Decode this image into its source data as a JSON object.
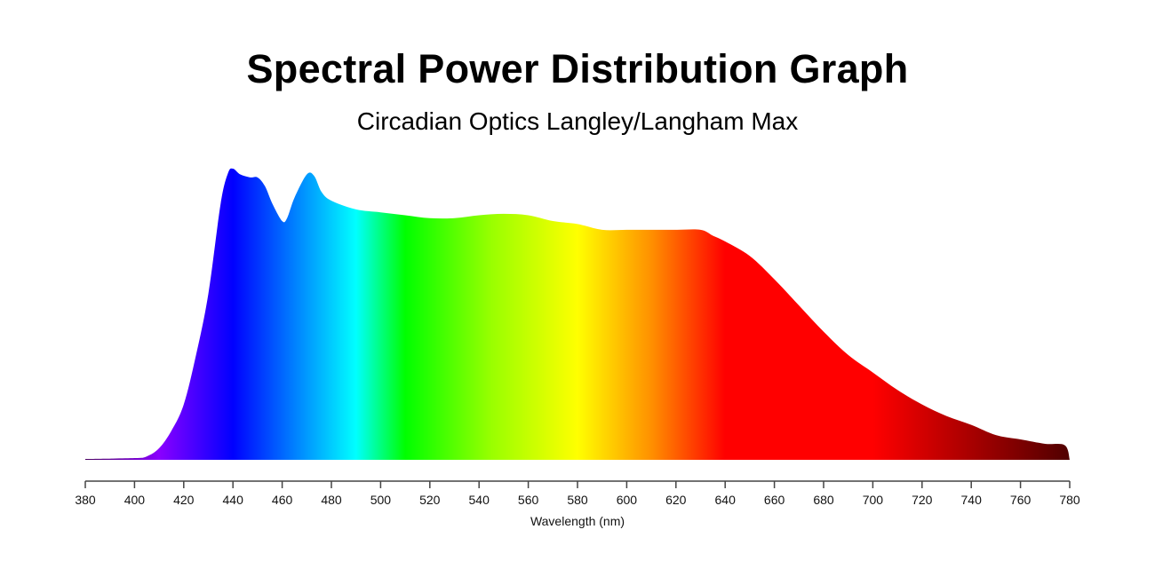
{
  "chart_data": {
    "type": "area",
    "title": "Spectral Power Distribution Graph",
    "subtitle": "Circadian Optics Langley/Langham Max",
    "xlabel": "Wavelength (nm)",
    "ylabel": "",
    "xlim": [
      380,
      780
    ],
    "ylim": [
      0,
      1
    ],
    "grid": false,
    "x_ticks": [
      380,
      400,
      420,
      440,
      460,
      480,
      500,
      520,
      540,
      560,
      580,
      600,
      620,
      640,
      660,
      680,
      700,
      720,
      740,
      760,
      780
    ],
    "x": [
      380,
      400,
      405,
      410,
      415,
      420,
      425,
      430,
      435,
      438,
      440,
      443,
      447,
      450,
      453,
      456,
      460,
      462,
      465,
      470,
      473,
      476,
      480,
      490,
      500,
      510,
      520,
      530,
      540,
      550,
      560,
      570,
      580,
      590,
      600,
      610,
      620,
      630,
      635,
      640,
      650,
      660,
      670,
      680,
      690,
      700,
      710,
      720,
      730,
      740,
      750,
      760,
      770,
      778,
      780
    ],
    "y": [
      0.003,
      0.006,
      0.012,
      0.04,
      0.1,
      0.19,
      0.36,
      0.57,
      0.88,
      0.985,
      1.0,
      0.98,
      0.97,
      0.97,
      0.94,
      0.88,
      0.82,
      0.83,
      0.9,
      0.98,
      0.975,
      0.92,
      0.89,
      0.86,
      0.85,
      0.84,
      0.83,
      0.83,
      0.84,
      0.845,
      0.84,
      0.82,
      0.81,
      0.79,
      0.79,
      0.79,
      0.79,
      0.79,
      0.77,
      0.75,
      0.7,
      0.62,
      0.53,
      0.44,
      0.36,
      0.3,
      0.24,
      0.19,
      0.15,
      0.12,
      0.085,
      0.07,
      0.055,
      0.05,
      0.0
    ],
    "fill_gradient": [
      {
        "nm": 380,
        "color": "#4a0060"
      },
      {
        "nm": 410,
        "color": "#8a00ff"
      },
      {
        "nm": 440,
        "color": "#0000ff"
      },
      {
        "nm": 465,
        "color": "#0080ff"
      },
      {
        "nm": 490,
        "color": "#00ffff"
      },
      {
        "nm": 510,
        "color": "#00ff00"
      },
      {
        "nm": 545,
        "color": "#99ff00"
      },
      {
        "nm": 580,
        "color": "#ffff00"
      },
      {
        "nm": 610,
        "color": "#ff9000"
      },
      {
        "nm": 640,
        "color": "#ff0000"
      },
      {
        "nm": 700,
        "color": "#ff0000"
      },
      {
        "nm": 780,
        "color": "#500000"
      }
    ]
  }
}
